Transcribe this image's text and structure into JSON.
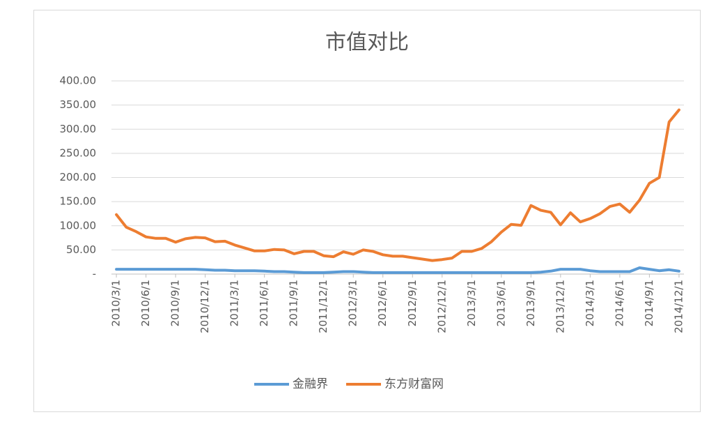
{
  "chart_data": {
    "type": "line",
    "title": "市值对比",
    "categories": [
      "2010/3/1",
      null,
      null,
      "2010/6/1",
      null,
      null,
      "2010/9/1",
      null,
      null,
      "2010/12/1",
      null,
      null,
      "2011/3/1",
      null,
      null,
      "2011/6/1",
      null,
      null,
      "2011/9/1",
      null,
      null,
      "2011/12/1",
      null,
      null,
      "2012/3/1",
      null,
      null,
      "2012/6/1",
      null,
      null,
      "2012/9/1",
      null,
      null,
      "2012/12/1",
      null,
      null,
      "2013/3/1",
      null,
      null,
      "2013/6/1",
      null,
      null,
      "2013/9/1",
      null,
      null,
      "2013/12/1",
      null,
      null,
      "2014/3/1",
      null,
      null,
      "2014/6/1",
      null,
      null,
      "2014/9/1",
      null,
      null,
      "2014/12/1"
    ],
    "series": [
      {
        "name": "金融界",
        "color": "#5b9bd5",
        "values": [
          10,
          10,
          10,
          10,
          10,
          10,
          10,
          10,
          10,
          9,
          8,
          8,
          7,
          7,
          7,
          6,
          5,
          5,
          4,
          3,
          3,
          3,
          4,
          5,
          5,
          4,
          3,
          3,
          3,
          3,
          3,
          3,
          3,
          3,
          3,
          3,
          3,
          3,
          3,
          3,
          3,
          3,
          3,
          4,
          6,
          10,
          10,
          10,
          7,
          5,
          5,
          5,
          5,
          13,
          10,
          7,
          9,
          6
        ]
      },
      {
        "name": "东方财富网",
        "color": "#ed7d31",
        "values": [
          123,
          97,
          88,
          77,
          74,
          74,
          66,
          73,
          76,
          75,
          67,
          68,
          60,
          54,
          48,
          48,
          51,
          50,
          42,
          47,
          47,
          38,
          36,
          46,
          41,
          50,
          47,
          40,
          37,
          37,
          34,
          31,
          28,
          30,
          33,
          47,
          47,
          53,
          67,
          87,
          103,
          101,
          142,
          132,
          128,
          102,
          127,
          108,
          115,
          125,
          140,
          145,
          128,
          153,
          188,
          200,
          315,
          340
        ]
      }
    ],
    "ylim": [
      0,
      400
    ],
    "yticks": [
      {
        "value": 0,
        "label": "-"
      },
      {
        "value": 50,
        "label": "50.00"
      },
      {
        "value": 100,
        "label": "100.00"
      },
      {
        "value": 150,
        "label": "150.00"
      },
      {
        "value": 200,
        "label": "200.00"
      },
      {
        "value": 250,
        "label": "250.00"
      },
      {
        "value": 300,
        "label": "300.00"
      },
      {
        "value": 350,
        "label": "350.00"
      },
      {
        "value": 400,
        "label": "400.00"
      }
    ],
    "grid": true
  }
}
